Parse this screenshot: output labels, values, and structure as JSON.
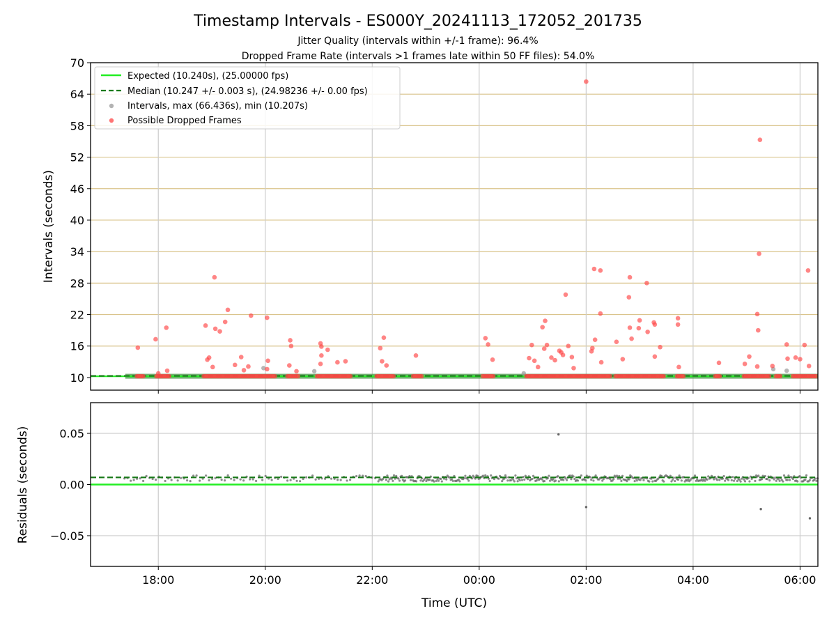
{
  "chart_data": {
    "type": "scatter",
    "title": "Timestamp Intervals - ES000Y_20241113_172052_201735",
    "subtitle_lines": [
      "Jitter Quality (intervals within +/-1 frame): 96.4%",
      "Dropped Frame Rate (intervals >1 frames late within 50 FF files): 54.0%"
    ],
    "xlabel": "Time (UTC)",
    "x_range": [
      "2024-11-13 16:44",
      "2024-11-14 06:20"
    ],
    "x_ticks": [
      "18:00",
      "20:00",
      "22:00",
      "00:00",
      "02:00",
      "04:00",
      "06:00"
    ],
    "top_panel": {
      "ylabel": "Intervals (seconds)",
      "ylim": [
        7.6,
        70
      ],
      "y_ticks": [
        "10",
        "16",
        "22",
        "28",
        "34",
        "40",
        "46",
        "52",
        "58",
        "64",
        "70"
      ],
      "grid": "horizontal lines at y ticks (tan), vertical lines at x ticks (gray)",
      "legend_position": "upper-left",
      "series": [
        {
          "name": "Expected (10.240s), (25.00000 fps)",
          "kind": "line",
          "color": "#22ee22",
          "y": 10.24
        },
        {
          "name": "Median (10.247 +/- 0.003 s), (24.98236 +/- 0.00 fps)",
          "kind": "dashed-line",
          "color": "#1a7a1a",
          "y": 10.247
        },
        {
          "name": "Intervals, max (66.436s), min (10.207s)",
          "kind": "points",
          "color": "#999999",
          "points": [
            [
              "2024-11-13 19:58",
              11.8
            ],
            [
              "2024-11-13 20:55",
              11.2
            ],
            [
              "2024-11-14 00:50",
              10.8
            ],
            [
              "2024-11-14 05:30",
              11.6
            ],
            [
              "2024-11-14 05:45",
              11.3
            ]
          ]
        },
        {
          "name": "Possible Dropped Frames",
          "kind": "points",
          "color": "#ff4444",
          "points": [
            [
              "2024-11-13 17:37",
              15.7
            ],
            [
              "2024-11-13 17:57",
              17.3
            ],
            [
              "2024-11-13 18:09",
              19.5
            ],
            [
              "2024-11-13 18:10",
              11.3
            ],
            [
              "2024-11-13 18:00",
              10.8
            ],
            [
              "2024-11-13 18:53",
              19.9
            ],
            [
              "2024-11-13 18:55",
              13.4
            ],
            [
              "2024-11-13 18:57",
              13.8
            ],
            [
              "2024-11-13 19:01",
              12.0
            ],
            [
              "2024-11-13 19:03",
              29.1
            ],
            [
              "2024-11-13 19:04",
              19.3
            ],
            [
              "2024-11-13 19:09",
              18.8
            ],
            [
              "2024-11-13 19:15",
              20.6
            ],
            [
              "2024-11-13 19:18",
              22.9
            ],
            [
              "2024-11-13 19:26",
              12.4
            ],
            [
              "2024-11-13 19:33",
              13.9
            ],
            [
              "2024-11-13 19:36",
              11.4
            ],
            [
              "2024-11-13 19:41",
              12.1
            ],
            [
              "2024-11-13 19:44",
              21.8
            ],
            [
              "2024-11-13 20:02",
              21.4
            ],
            [
              "2024-11-13 20:03",
              13.2
            ],
            [
              "2024-11-13 20:02",
              11.6
            ],
            [
              "2024-11-13 20:28",
              17.1
            ],
            [
              "2024-11-13 20:29",
              16.0
            ],
            [
              "2024-11-13 20:27",
              12.3
            ],
            [
              "2024-11-13 20:35",
              11.2
            ],
            [
              "2024-11-13 21:02",
              16.5
            ],
            [
              "2024-11-13 21:03",
              15.9
            ],
            [
              "2024-11-13 21:03",
              14.2
            ],
            [
              "2024-11-13 21:02",
              12.6
            ],
            [
              "2024-11-13 21:10",
              15.3
            ],
            [
              "2024-11-13 21:21",
              12.9
            ],
            [
              "2024-11-13 21:30",
              13.1
            ],
            [
              "2024-11-13 22:09",
              15.6
            ],
            [
              "2024-11-13 22:13",
              17.6
            ],
            [
              "2024-11-13 22:11",
              13.1
            ],
            [
              "2024-11-13 22:16",
              12.3
            ],
            [
              "2024-11-13 22:49",
              14.2
            ],
            [
              "2024-11-14 00:07",
              17.5
            ],
            [
              "2024-11-14 00:10",
              16.3
            ],
            [
              "2024-11-14 00:15",
              13.4
            ],
            [
              "2024-11-14 00:56",
              13.7
            ],
            [
              "2024-11-14 00:59",
              16.2
            ],
            [
              "2024-11-14 01:02",
              13.2
            ],
            [
              "2024-11-14 01:06",
              12.0
            ],
            [
              "2024-11-14 01:11",
              19.6
            ],
            [
              "2024-11-14 01:14",
              20.8
            ],
            [
              "2024-11-14 01:13",
              15.5
            ],
            [
              "2024-11-14 01:16",
              16.2
            ],
            [
              "2024-11-14 01:21",
              13.8
            ],
            [
              "2024-11-14 01:25",
              13.3
            ],
            [
              "2024-11-14 01:30",
              15.1
            ],
            [
              "2024-11-14 01:32",
              14.8
            ],
            [
              "2024-11-14 01:34",
              14.3
            ],
            [
              "2024-11-14 01:37",
              25.8
            ],
            [
              "2024-11-14 01:40",
              16.0
            ],
            [
              "2024-11-14 01:44",
              13.9
            ],
            [
              "2024-11-14 01:46",
              11.8
            ],
            [
              "2024-11-14 02:00",
              66.4
            ],
            [
              "2024-11-14 02:06",
              15.0
            ],
            [
              "2024-11-14 02:07",
              15.6
            ],
            [
              "2024-11-14 02:09",
              30.7
            ],
            [
              "2024-11-14 02:10",
              17.2
            ],
            [
              "2024-11-14 02:16",
              30.4
            ],
            [
              "2024-11-14 02:16",
              22.2
            ],
            [
              "2024-11-14 02:17",
              12.9
            ],
            [
              "2024-11-14 02:34",
              16.8
            ],
            [
              "2024-11-14 02:41",
              13.5
            ],
            [
              "2024-11-14 02:49",
              29.1
            ],
            [
              "2024-11-14 02:48",
              25.3
            ],
            [
              "2024-11-14 02:49",
              19.5
            ],
            [
              "2024-11-14 02:51",
              17.4
            ],
            [
              "2024-11-14 02:59",
              19.4
            ],
            [
              "2024-11-14 03:00",
              20.9
            ],
            [
              "2024-11-14 03:08",
              28.0
            ],
            [
              "2024-11-14 03:09",
              18.7
            ],
            [
              "2024-11-14 03:16",
              20.5
            ],
            [
              "2024-11-14 03:17",
              20.1
            ],
            [
              "2024-11-14 03:17",
              14.0
            ],
            [
              "2024-11-14 03:23",
              15.8
            ],
            [
              "2024-11-14 03:43",
              21.3
            ],
            [
              "2024-11-14 03:43",
              20.1
            ],
            [
              "2024-11-14 03:44",
              12.0
            ],
            [
              "2024-11-14 04:29",
              12.8
            ],
            [
              "2024-11-14 04:58",
              12.6
            ],
            [
              "2024-11-14 05:03",
              14.0
            ],
            [
              "2024-11-14 05:12",
              12.1
            ],
            [
              "2024-11-14 05:12",
              22.1
            ],
            [
              "2024-11-14 05:13",
              19.0
            ],
            [
              "2024-11-14 05:14",
              33.6
            ],
            [
              "2024-11-14 05:15",
              55.3
            ],
            [
              "2024-11-14 05:29",
              12.2
            ],
            [
              "2024-11-14 05:45",
              16.3
            ],
            [
              "2024-11-14 05:46",
              13.6
            ],
            [
              "2024-11-14 05:55",
              13.8
            ],
            [
              "2024-11-14 06:00",
              13.5
            ],
            [
              "2024-11-14 06:05",
              16.2
            ],
            [
              "2024-11-14 06:09",
              30.4
            ],
            [
              "2024-11-14 06:10",
              12.2
            ]
          ],
          "baseline_clusters": [
            [
              "2024-11-13 17:36",
              "2024-11-13 17:45"
            ],
            [
              "2024-11-13 17:58",
              "2024-11-13 18:14"
            ],
            [
              "2024-11-13 18:51",
              "2024-11-13 20:12"
            ],
            [
              "2024-11-13 20:25",
              "2024-11-13 20:38"
            ],
            [
              "2024-11-13 20:58",
              "2024-11-13 21:37"
            ],
            [
              "2024-11-13 22:05",
              "2024-11-13 22:24"
            ],
            [
              "2024-11-13 22:46",
              "2024-11-13 22:57"
            ],
            [
              "2024-11-14 00:04",
              "2024-11-14 00:18"
            ],
            [
              "2024-11-14 00:53",
              "2024-11-14 02:28"
            ],
            [
              "2024-11-14 02:33",
              "2024-11-14 03:27"
            ],
            [
              "2024-11-14 03:42",
              "2024-11-14 03:51"
            ],
            [
              "2024-11-14 04:25",
              "2024-11-14 04:31"
            ],
            [
              "2024-11-14 04:57",
              "2024-11-14 05:26"
            ],
            [
              "2024-11-14 05:33",
              "2024-11-14 05:40"
            ],
            [
              "2024-11-14 05:52",
              "2024-11-14 06:20"
            ]
          ]
        }
      ]
    },
    "bottom_panel": {
      "ylabel": "Residuals (seconds)",
      "ylim": [
        -0.08,
        0.08
      ],
      "y_ticks": [
        "0.05",
        "0.00",
        "−0.05"
      ],
      "series": [
        {
          "kind": "line",
          "color": "#22ee22",
          "y": 0.0
        },
        {
          "kind": "dashed-line",
          "color": "#1a7a1a",
          "y": 0.007
        },
        {
          "kind": "points",
          "color": "#666666",
          "band_y": 0.006,
          "band_range": [
            "2024-11-13 17:22",
            "2024-11-14 06:20"
          ],
          "outliers": [
            [
              "2024-11-14 01:29",
              0.049
            ],
            [
              "2024-11-14 02:00",
              -0.022
            ],
            [
              "2024-11-14 05:16",
              -0.024
            ],
            [
              "2024-11-14 06:11",
              -0.033
            ]
          ]
        }
      ]
    }
  }
}
